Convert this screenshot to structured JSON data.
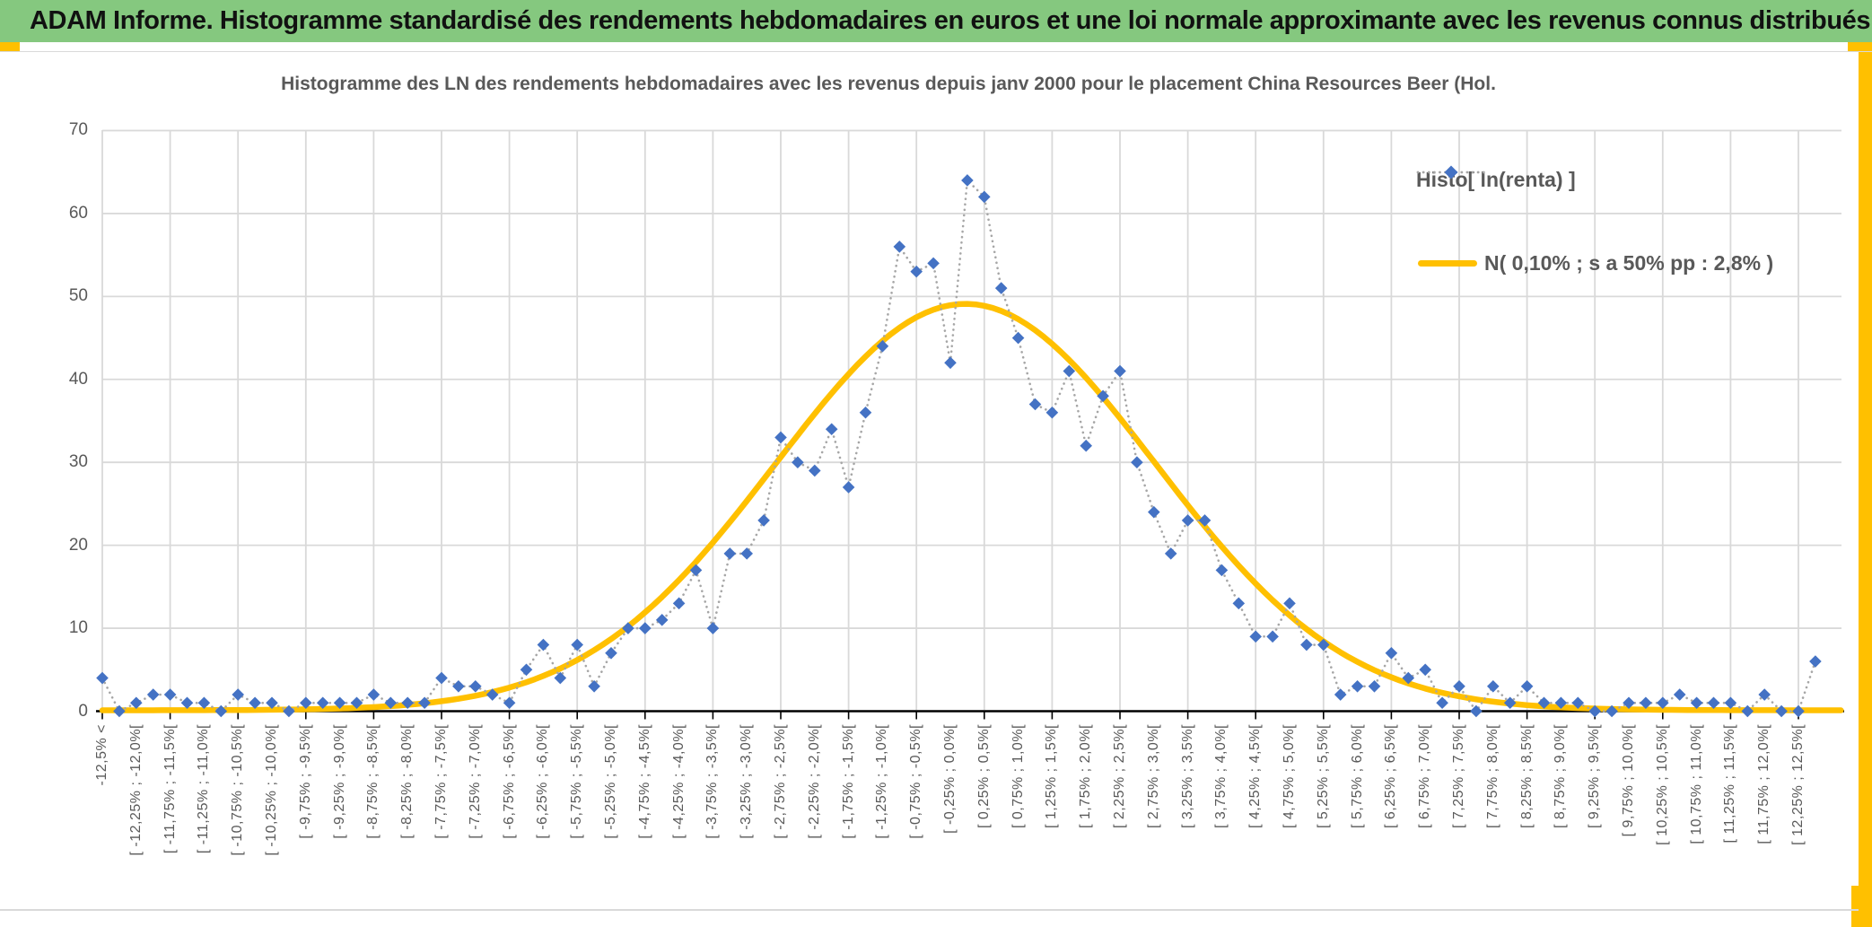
{
  "header": {
    "title": "ADAM Informe. Histogramme standardisé des rendements hebdomadaires en euros et une loi normale approximante avec les revenus connus distribués"
  },
  "colors": {
    "header_green": "#85C87F",
    "accent_gold": "#FFC000",
    "series_blue": "#4472C4",
    "connector_gray": "#A6A6A6",
    "grid_gray": "#D9D9D9",
    "axis_text": "#595959",
    "axis_black": "#000000"
  },
  "chart_data": {
    "type": "line",
    "title": "Histogramme des LN des rendements hebdomadaires avec les revenus depuis janv 2000 pour le placement China Resources Beer (Hol.",
    "ylim": [
      0,
      70
    ],
    "yticks": [
      0,
      10,
      20,
      30,
      40,
      50,
      60,
      70
    ],
    "grid": true,
    "legend_position": "right-top",
    "x_axis_note": "102 bins of 0,25% from -12,5% to +12,5% plus under/overflow; a tick label is shown on every second bin",
    "x_axis_labels": [
      "-12,5% <",
      "[ -12,25% ; -12,0%[",
      "[ -11,75% ; -11,5%[",
      "[ -11,25% ; -11,0%[",
      "[ -10,75% ; -10,5%[",
      "[ -10,25% ; -10,0%[",
      "[ -9,75% ; -9,5%[",
      "[ -9,25% ; -9,0%[",
      "[ -8,75% ; -8,5%[",
      "[ -8,25% ; -8,0%[",
      "[ -7,75% ; -7,5%[",
      "[ -7,25% ; -7,0%[",
      "[ -6,75% ; -6,5%[",
      "[ -6,25% ; -6,0%[",
      "[ -5,75% ; -5,5%[",
      "[ -5,25% ; -5,0%[",
      "[ -4,75% ; -4,5%[",
      "[ -4,25% ; -4,0%[",
      "[ -3,75% ; -3,5%[",
      "[ -3,25% ; -3,0%[",
      "[ -2,75% ; -2,5%[",
      "[ -2,25% ; -2,0%[",
      "[ -1,75% ; -1,5%[",
      "[ -1,25% ; -1,0%[",
      "[ -0,75% ; -0,5%[",
      "[ -0,25% ; 0,0%[",
      "[ 0,25% ; 0,5%[",
      "[ 0,75% ; 1,0%[",
      "[ 1,25% ; 1,5%[",
      "[ 1,75% ; 2,0%[",
      "[ 2,25% ; 2,5%[",
      "[ 2,75% ; 3,0%[",
      "[ 3,25% ; 3,5%[",
      "[ 3,75% ; 4,0%[",
      "[ 4,25% ; 4,5%[",
      "[ 4,75% ; 5,0%[",
      "[ 5,25% ; 5,5%[",
      "[ 5,75% ; 6,0%[",
      "[ 6,25% ; 6,5%[",
      "[ 6,75% ; 7,0%[",
      "[ 7,25% ; 7,5%[",
      "[ 7,75% ; 8,0%[",
      "[ 8,25% ; 8,5%[",
      "[ 8,75% ; 9,0%[",
      "[ 9,25% ; 9,5%[",
      "[ 9,75% ; 10,0%[",
      "[ 10,25% ; 10,5%[",
      "[ 10,75% ; 11,0%[",
      "[ 11,25% ; 11,5%[",
      "[ 11,75% ; 12,0%[",
      "[ 12,25% ; 12,5%["
    ],
    "series": [
      {
        "name": "Histo[ ln(renta) ]",
        "style": "blue diamond markers with dotted gray connector",
        "values": [
          4,
          0,
          1,
          2,
          2,
          1,
          1,
          0,
          2,
          1,
          1,
          0,
          1,
          1,
          1,
          1,
          2,
          1,
          1,
          1,
          4,
          3,
          3,
          2,
          1,
          5,
          8,
          4,
          8,
          3,
          7,
          10,
          10,
          11,
          13,
          17,
          10,
          19,
          19,
          23,
          33,
          30,
          29,
          34,
          27,
          36,
          44,
          56,
          53,
          54,
          42,
          64,
          62,
          51,
          45,
          37,
          36,
          41,
          32,
          38,
          41,
          30,
          24,
          19,
          23,
          23,
          17,
          13,
          9,
          9,
          13,
          8,
          8,
          2,
          3,
          3,
          7,
          4,
          5,
          1,
          3,
          0,
          3,
          1,
          3,
          1,
          1,
          1,
          0,
          0,
          1,
          1,
          1,
          2,
          1,
          1,
          1,
          0,
          2,
          0,
          0,
          6
        ]
      },
      {
        "name": "N( 0,10% ; s a 50% pp : 2,8% )",
        "style": "smooth gold normal curve",
        "curve": {
          "peak": 49,
          "mean_pct": 0.1,
          "sigma_pct": 2.8,
          "x_start_pct": -12.625,
          "bin_width_pct": 0.25
        }
      }
    ]
  }
}
